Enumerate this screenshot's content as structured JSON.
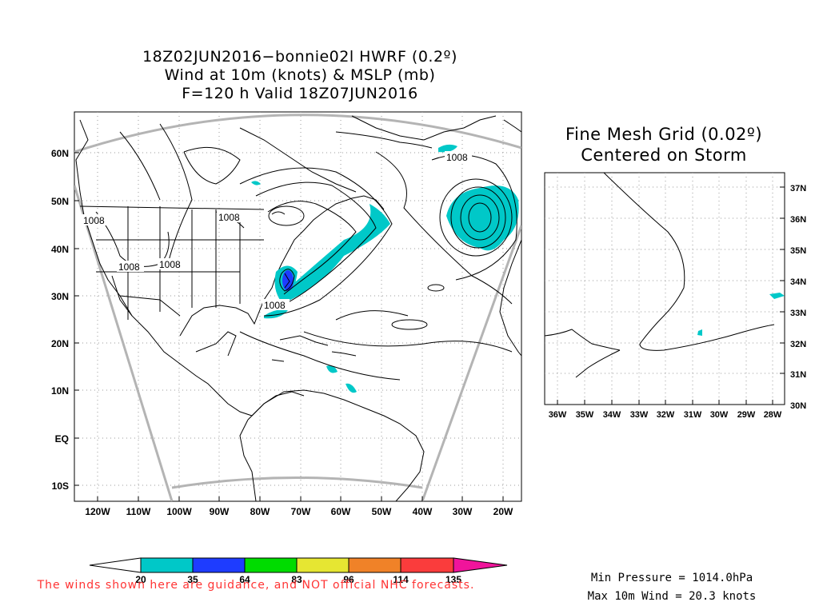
{
  "main_map": {
    "title_lines": [
      "18Z02JUN2016−bonnie02l HWRF (0.2º)",
      "Wind at 10m (knots) & MSLP (mb)",
      "F=120 h Valid 18Z07JUN2016"
    ],
    "lat_labels": [
      "60N",
      "50N",
      "40N",
      "30N",
      "20N",
      "10N",
      "EQ",
      "10S"
    ],
    "lon_labels": [
      "120W",
      "110W",
      "100W",
      "90W",
      "80W",
      "70W",
      "60W",
      "50W",
      "40W",
      "30W",
      "20W"
    ],
    "contour_labels": [
      "1008",
      "1008",
      "1008",
      "1008",
      "1008",
      "1008"
    ]
  },
  "fine_mesh": {
    "title_lines": [
      "Fine Mesh Grid (0.02º)",
      "Centered on Storm"
    ],
    "lat_labels": [
      "37N",
      "36N",
      "35N",
      "34N",
      "33N",
      "32N",
      "31N",
      "30N"
    ],
    "lon_labels": [
      "36W",
      "35W",
      "34W",
      "33W",
      "32W",
      "31W",
      "30W",
      "29W",
      "28W"
    ]
  },
  "colorbar": {
    "ticks": [
      "20",
      "35",
      "64",
      "83",
      "96",
      "114",
      "135"
    ],
    "colors": [
      "#00c8c8",
      "#1e3cff",
      "#00dc00",
      "#e6e632",
      "#f08228",
      "#fa3c3c"
    ],
    "under_color": "#ffffff",
    "over_color": "#f0149b"
  },
  "stats": {
    "min_pressure": "Min Pressure = 1014.0hPa",
    "max_wind": "Max 10m Wind = 20.3 knots"
  },
  "disclaimer": "The winds shown here are guidance, and NOT official NHC forecasts.",
  "colors": {
    "wind_35": "#00c8c8",
    "wind_64": "#1e3cff",
    "grid": "#999999",
    "domain_border": "#b4b4b4"
  }
}
